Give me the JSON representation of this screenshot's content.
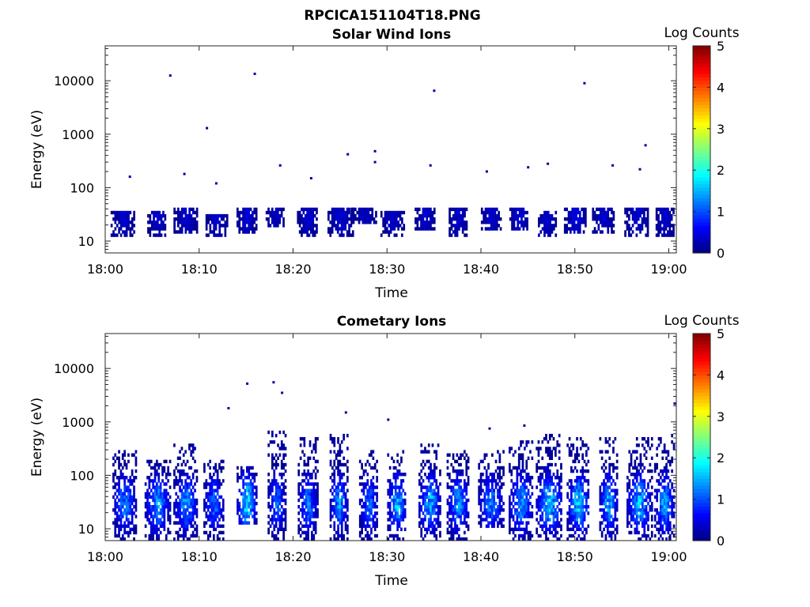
{
  "figure": {
    "title": "RPCICA151104T18.PNG"
  },
  "colorbar": {
    "label": "Log Counts",
    "min": 0,
    "max": 5,
    "ticks": [
      "0",
      "1",
      "2",
      "3",
      "4",
      "5"
    ],
    "colormap": "jet"
  },
  "chart_data": [
    {
      "type": "heatmap",
      "title": "Solar Wind Ions",
      "xlabel": "Time",
      "ylabel": "Energy (eV)",
      "x_ticks": [
        "18:00",
        "18:10",
        "18:20",
        "18:30",
        "18:40",
        "18:50",
        "19:00"
      ],
      "y_ticks": [
        "10",
        "100",
        "1000",
        "10000"
      ],
      "y_scale": "log",
      "xlim_minutes": [
        0,
        60.8
      ],
      "ylim_eV": [
        6,
        45000
      ],
      "description_of_values": "sparse low count bursts (log counts 0-0.5) mostly between 10 and 50 eV, with isolated pixels up to ~14000 eV",
      "bursts": [
        {
          "t": 1.8,
          "e_lo": 12,
          "e_hi": 35,
          "peak": 0.4
        },
        {
          "t": 5.5,
          "e_lo": 12,
          "e_hi": 35,
          "peak": 0.4
        },
        {
          "t": 8.5,
          "e_lo": 14,
          "e_hi": 40,
          "peak": 0.4
        },
        {
          "t": 11.8,
          "e_lo": 12,
          "e_hi": 30,
          "peak": 0.4
        },
        {
          "t": 15.0,
          "e_lo": 14,
          "e_hi": 42,
          "peak": 0.45
        },
        {
          "t": 18.0,
          "e_lo": 18,
          "e_hi": 40,
          "peak": 0.35
        },
        {
          "t": 21.5,
          "e_lo": 12,
          "e_hi": 40,
          "peak": 0.4
        },
        {
          "t": 25.0,
          "e_lo": 12,
          "e_hi": 45,
          "peak": 0.45
        },
        {
          "t": 27.5,
          "e_lo": 20,
          "e_hi": 40,
          "peak": 0.3
        },
        {
          "t": 30.5,
          "e_lo": 12,
          "e_hi": 35,
          "peak": 0.4
        },
        {
          "t": 34.0,
          "e_lo": 16,
          "e_hi": 40,
          "peak": 0.4
        },
        {
          "t": 37.5,
          "e_lo": 12,
          "e_hi": 40,
          "peak": 0.4
        },
        {
          "t": 41.0,
          "e_lo": 16,
          "e_hi": 40,
          "peak": 0.4
        },
        {
          "t": 44.0,
          "e_lo": 15,
          "e_hi": 40,
          "peak": 0.45
        },
        {
          "t": 47.0,
          "e_lo": 12,
          "e_hi": 35,
          "peak": 0.4
        },
        {
          "t": 50.0,
          "e_lo": 14,
          "e_hi": 45,
          "peak": 0.45
        },
        {
          "t": 53.0,
          "e_lo": 14,
          "e_hi": 40,
          "peak": 0.4
        },
        {
          "t": 56.5,
          "e_lo": 12,
          "e_hi": 40,
          "peak": 0.4
        },
        {
          "t": 59.5,
          "e_lo": 12,
          "e_hi": 40,
          "peak": 0.4
        }
      ],
      "isolated_points": [
        {
          "t": 6.8,
          "e": 12500
        },
        {
          "t": 15.8,
          "e": 13500
        },
        {
          "t": 10.7,
          "e": 1300
        },
        {
          "t": 34.9,
          "e": 6500
        },
        {
          "t": 50.9,
          "e": 9000
        },
        {
          "t": 18.5,
          "e": 260
        },
        {
          "t": 25.7,
          "e": 420
        },
        {
          "t": 28.6,
          "e": 480
        },
        {
          "t": 28.6,
          "e": 300
        },
        {
          "t": 57.4,
          "e": 620
        },
        {
          "t": 53.9,
          "e": 260
        },
        {
          "t": 44.9,
          "e": 240
        },
        {
          "t": 47.0,
          "e": 280
        },
        {
          "t": 40.5,
          "e": 200
        },
        {
          "t": 2.5,
          "e": 160
        },
        {
          "t": 8.3,
          "e": 180
        },
        {
          "t": 11.7,
          "e": 120
        },
        {
          "t": 21.8,
          "e": 150
        },
        {
          "t": 34.5,
          "e": 260
        },
        {
          "t": 56.8,
          "e": 220
        }
      ]
    },
    {
      "type": "heatmap",
      "title": "Cometary Ions",
      "xlabel": "Time",
      "ylabel": "Energy (eV)",
      "x_ticks": [
        "18:00",
        "18:10",
        "18:20",
        "18:30",
        "18:40",
        "18:50",
        "19:00"
      ],
      "y_ticks": [
        "10",
        "100",
        "1000",
        "10000"
      ],
      "y_scale": "log",
      "xlim_minutes": [
        0,
        60.8
      ],
      "ylim_eV": [
        6,
        45000
      ],
      "description_of_values": "periodic vertical bursts roughly every 3 minutes, core 10-60 eV with log counts up to ~1.8, tails reaching ~300-1000 eV",
      "bursts": [
        {
          "t": 2.0,
          "e_lo": 6,
          "e_hi": 300,
          "peak": 1.3
        },
        {
          "t": 5.5,
          "e_lo": 6,
          "e_hi": 200,
          "peak": 1.5
        },
        {
          "t": 8.5,
          "e_lo": 6,
          "e_hi": 400,
          "peak": 1.4
        },
        {
          "t": 11.5,
          "e_lo": 6,
          "e_hi": 200,
          "peak": 1.2
        },
        {
          "t": 15.0,
          "e_lo": 12,
          "e_hi": 150,
          "peak": 1.9
        },
        {
          "t": 18.2,
          "e_lo": 6,
          "e_hi": 700,
          "peak": 1.2
        },
        {
          "t": 21.5,
          "e_lo": 6,
          "e_hi": 500,
          "peak": 1.3
        },
        {
          "t": 24.8,
          "e_lo": 6,
          "e_hi": 600,
          "peak": 1.5
        },
        {
          "t": 28.0,
          "e_lo": 6,
          "e_hi": 300,
          "peak": 1.2
        },
        {
          "t": 31.0,
          "e_lo": 6,
          "e_hi": 300,
          "peak": 1.6
        },
        {
          "t": 34.5,
          "e_lo": 6,
          "e_hi": 400,
          "peak": 1.6
        },
        {
          "t": 37.5,
          "e_lo": 6,
          "e_hi": 300,
          "peak": 1.4
        },
        {
          "t": 41.0,
          "e_lo": 10,
          "e_hi": 300,
          "peak": 1.3
        },
        {
          "t": 44.2,
          "e_lo": 6,
          "e_hi": 450,
          "peak": 1.5
        },
        {
          "t": 47.2,
          "e_lo": 6,
          "e_hi": 600,
          "peak": 1.7
        },
        {
          "t": 50.3,
          "e_lo": 6,
          "e_hi": 500,
          "peak": 1.8
        },
        {
          "t": 53.5,
          "e_lo": 6,
          "e_hi": 550,
          "peak": 1.6
        },
        {
          "t": 56.8,
          "e_lo": 6,
          "e_hi": 500,
          "peak": 1.6
        },
        {
          "t": 59.5,
          "e_lo": 6,
          "e_hi": 600,
          "peak": 1.5
        }
      ],
      "isolated_points": [
        {
          "t": 15.0,
          "e": 5200
        },
        {
          "t": 17.8,
          "e": 5500
        },
        {
          "t": 18.7,
          "e": 3500
        },
        {
          "t": 13.0,
          "e": 1800
        },
        {
          "t": 60.5,
          "e": 2200
        },
        {
          "t": 25.5,
          "e": 1500
        },
        {
          "t": 30.0,
          "e": 1100
        },
        {
          "t": 40.8,
          "e": 750
        },
        {
          "t": 44.5,
          "e": 850
        }
      ]
    }
  ]
}
